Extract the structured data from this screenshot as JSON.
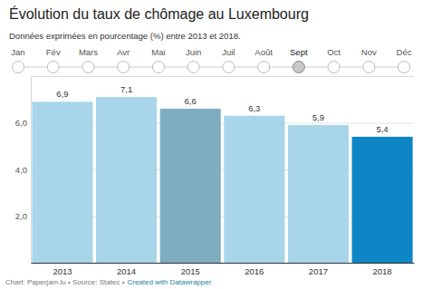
{
  "chart_data": {
    "type": "bar",
    "title": "Évolution du taux de chômage au Luxembourg",
    "subtitle": "Données exprimées en pourcentage (%) entre 2013 et 2018.",
    "months": [
      "Jan",
      "Fév",
      "Mars",
      "Avr",
      "Mai",
      "Juin",
      "Juil",
      "Août",
      "Sept",
      "Oct",
      "Nov",
      "Déc"
    ],
    "selected_month": "Sept",
    "categories": [
      "2013",
      "2014",
      "2015",
      "2016",
      "2017",
      "2018"
    ],
    "values": [
      6.9,
      7.1,
      6.6,
      6.3,
      5.9,
      5.4
    ],
    "value_labels": [
      "6,9",
      "7,1",
      "6,6",
      "6,3",
      "5,9",
      "5,4"
    ],
    "colors": [
      "#a8d5ea",
      "#a8d5ea",
      "#7eadc1",
      "#a8d5ea",
      "#a8d5ea",
      "#0e86c6"
    ],
    "ylim": [
      0,
      8
    ],
    "yticks": [
      {
        "value": 2,
        "label": "2,0"
      },
      {
        "value": 4,
        "label": "4,0"
      },
      {
        "value": 6,
        "label": "6,0"
      }
    ],
    "grid": true,
    "data_labels": true,
    "credit": "Chart: Paperjam.lu • Source: Statec •",
    "credit_link": "Created with Datawrapper"
  }
}
